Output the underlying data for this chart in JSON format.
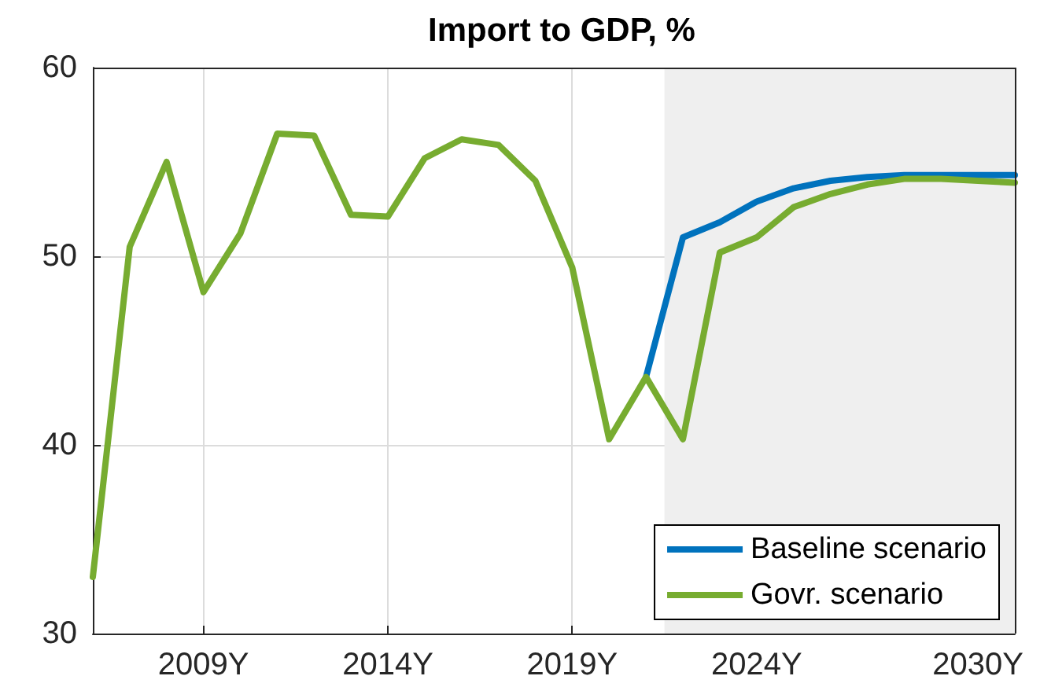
{
  "chart_data": {
    "type": "line",
    "title": "Import to GDP, %",
    "x": [
      2006,
      2007,
      2008,
      2009,
      2010,
      2011,
      2012,
      2013,
      2014,
      2015,
      2016,
      2017,
      2018,
      2019,
      2020,
      2021,
      2022,
      2023,
      2024,
      2025,
      2026,
      2027,
      2028,
      2029,
      2030,
      2031
    ],
    "series": [
      {
        "name": "Baseline scenario",
        "color": "#0072bd",
        "values": [
          null,
          null,
          null,
          null,
          null,
          null,
          null,
          null,
          null,
          null,
          null,
          null,
          null,
          null,
          null,
          43.6,
          51,
          51.8,
          52.9,
          53.6,
          54,
          54.2,
          54.3,
          54.3,
          54.3,
          54.3
        ]
      },
      {
        "name": "Govr. scenario",
        "color": "#77ac30",
        "values": [
          33,
          50.5,
          55,
          48.1,
          51.2,
          56.5,
          56.4,
          52.2,
          52.1,
          55.2,
          56.2,
          55.9,
          54,
          49.4,
          40.3,
          43.6,
          40.3,
          50.2,
          51,
          52.6,
          53.3,
          53.8,
          54.1,
          54.1,
          54,
          53.9
        ]
      }
    ],
    "xlim": [
      2006,
      2031
    ],
    "xticks": [
      {
        "value": 2009,
        "label": "2009Y"
      },
      {
        "value": 2014,
        "label": "2014Y"
      },
      {
        "value": 2019,
        "label": "2019Y"
      },
      {
        "value": 2024,
        "label": "2024Y"
      },
      {
        "value": 2030,
        "label": "2030Y"
      }
    ],
    "ylim": [
      30,
      60
    ],
    "yticks": [
      30,
      40,
      50,
      60
    ],
    "bands": [
      {
        "axis": "x",
        "from": 2021.5,
        "to": 2031,
        "color": "#efefef"
      }
    ],
    "grid": true,
    "legend": "bottom right",
    "marker": "none",
    "line_style": "solid"
  }
}
